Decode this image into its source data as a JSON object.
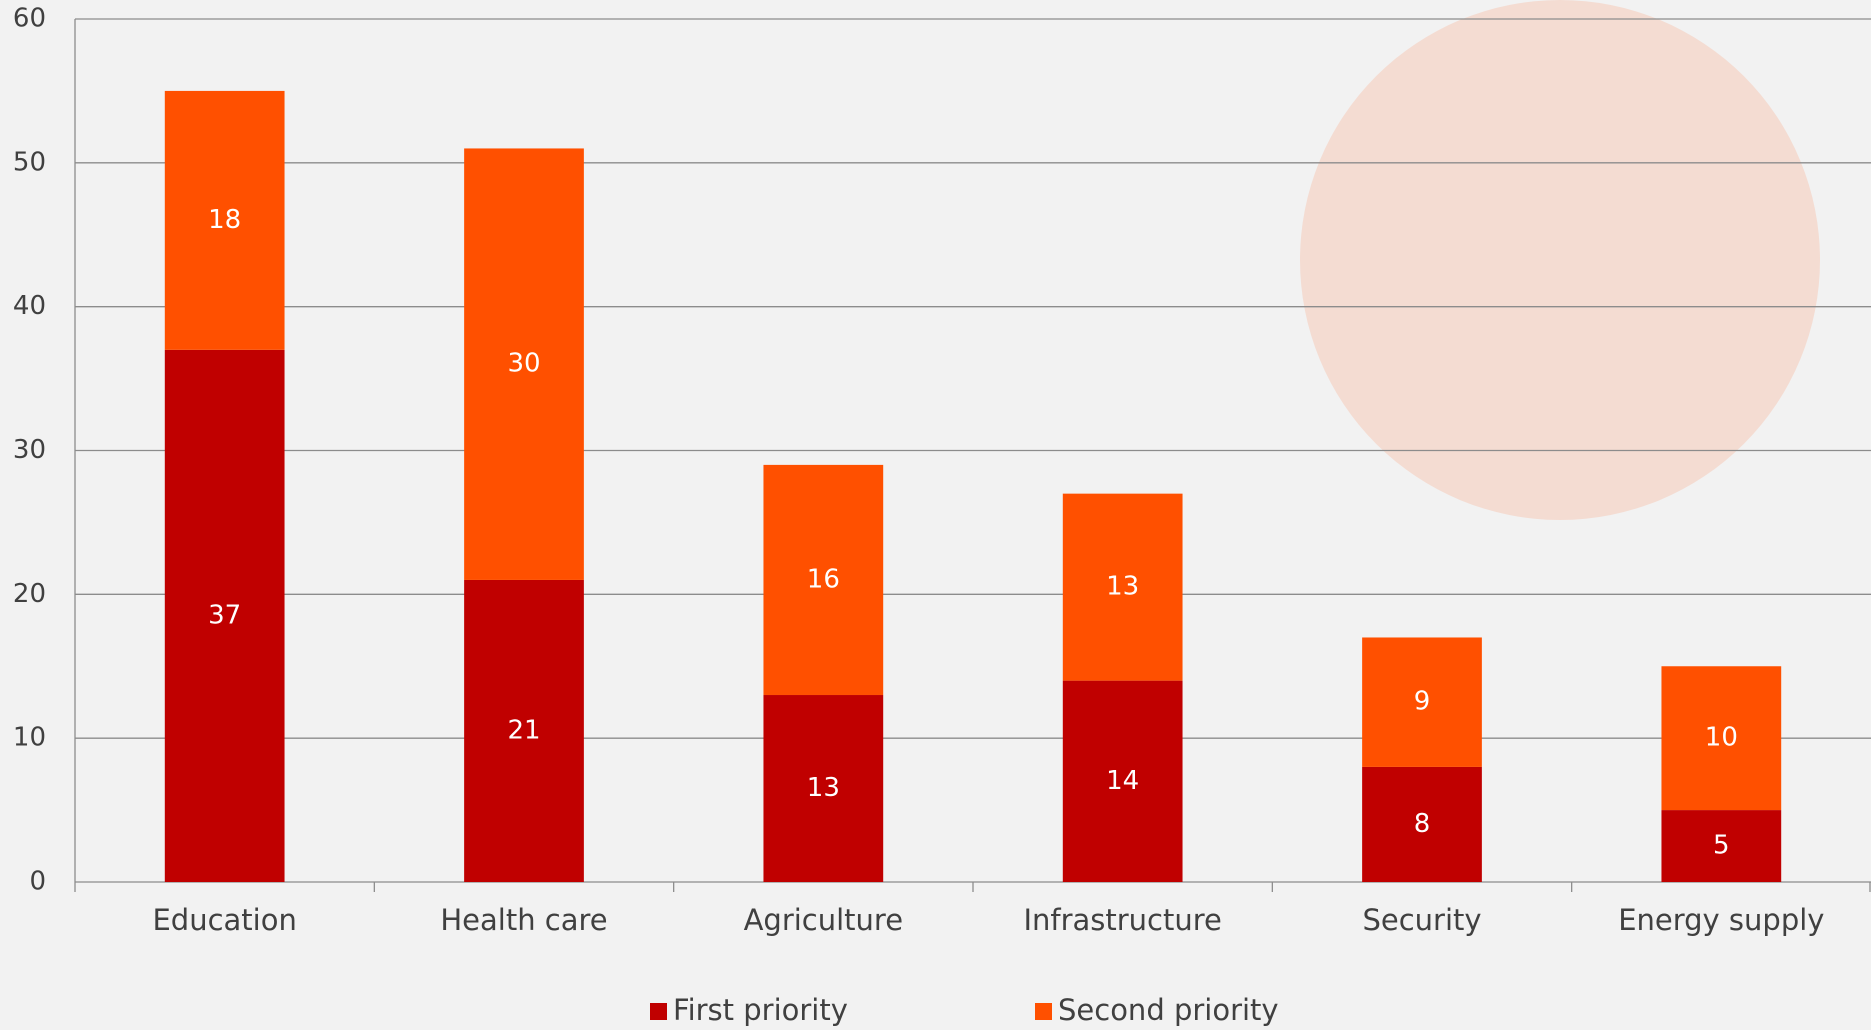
{
  "chart_data": {
    "type": "stacked_bar",
    "categories": [
      "Education",
      "Health care",
      "Agriculture",
      "Infrastructure",
      "Security",
      "Energy supply"
    ],
    "series": [
      {
        "name": "First priority",
        "color": "#c00000",
        "values": [
          37,
          21,
          13,
          14,
          8,
          5
        ]
      },
      {
        "name": "Second priority",
        "color": "#ff5000",
        "values": [
          18,
          30,
          16,
          13,
          9,
          10
        ]
      }
    ],
    "ylim": [
      0,
      60
    ],
    "yticks": [
      0,
      10,
      20,
      30,
      40,
      50,
      60
    ],
    "grid": true,
    "legend": "bottom"
  }
}
